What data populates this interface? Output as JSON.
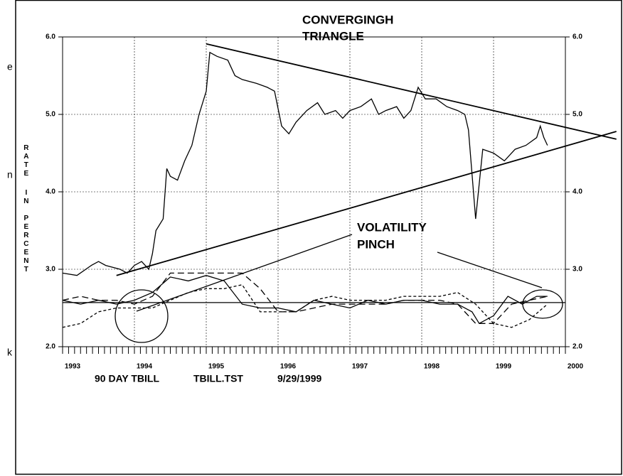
{
  "chart_data": {
    "type": "line",
    "title": [
      "CONVERGINGH",
      "TRIANGLE"
    ],
    "annotation": [
      "VOLATILITY",
      "PINCH"
    ],
    "y_label": [
      "RATE",
      "IN",
      "PERCENT"
    ],
    "footer": [
      "90 DAY TBILL",
      "TBILL.TST",
      "9/29/1999"
    ],
    "fragments": [
      "e",
      "n",
      "k"
    ],
    "xlim": [
      1993,
      2000
    ],
    "xticks": [
      1993,
      1994,
      1995,
      1996,
      1997,
      1998,
      1999,
      2000
    ],
    "ylim": [
      2,
      6
    ],
    "yticks": [
      {
        "value": 2,
        "label": "2.0"
      },
      {
        "value": 3,
        "label": "3.0"
      },
      {
        "value": 4,
        "label": "4.0"
      },
      {
        "value": 5,
        "label": "5.0"
      },
      {
        "value": 6,
        "label": "6.0"
      }
    ],
    "grid": true,
    "hline": 2.57,
    "series": [
      {
        "color": "#000000",
        "dash": "solid",
        "width": 1.3,
        "x": [
          1993.0,
          1993.2,
          1993.4,
          1993.5,
          1993.6,
          1993.8,
          1993.9,
          1994.0,
          1994.1,
          1994.2,
          1994.25,
          1994.3,
          1994.4,
          1994.45,
          1994.5,
          1994.6,
          1994.7,
          1994.8,
          1994.9,
          1995.0,
          1995.05,
          1995.15,
          1995.3,
          1995.4,
          1995.5,
          1995.7,
          1995.85,
          1995.95,
          1996.05,
          1996.15,
          1996.25,
          1996.4,
          1996.55,
          1996.65,
          1996.8,
          1996.9,
          1997.0,
          1997.15,
          1997.3,
          1997.4,
          1997.5,
          1997.65,
          1997.75,
          1997.85,
          1997.95,
          1998.05,
          1998.2,
          1998.35,
          1998.5,
          1998.6,
          1998.65,
          1998.75,
          1998.8,
          1998.85,
          1999.0,
          1999.15,
          1999.3,
          1999.45,
          1999.6,
          1999.65,
          1999.7,
          1999.75
        ],
        "values": [
          2.95,
          2.92,
          3.05,
          3.1,
          3.05,
          3.0,
          2.95,
          3.05,
          3.1,
          3.0,
          3.2,
          3.5,
          3.65,
          4.3,
          4.2,
          4.15,
          4.4,
          4.6,
          5.0,
          5.3,
          5.8,
          5.75,
          5.7,
          5.5,
          5.45,
          5.4,
          5.35,
          5.3,
          4.85,
          4.75,
          4.9,
          5.05,
          5.15,
          5.0,
          5.05,
          4.95,
          5.05,
          5.1,
          5.2,
          5.0,
          5.05,
          5.1,
          4.95,
          5.05,
          5.35,
          5.2,
          5.2,
          5.1,
          5.05,
          5.0,
          4.8,
          3.65,
          4.1,
          4.55,
          4.5,
          4.4,
          4.55,
          4.6,
          4.7,
          4.85,
          4.7,
          4.6
        ]
      },
      {
        "color": "#000000",
        "dash": "solid",
        "width": 1.3,
        "x": [
          1993,
          1993.25,
          1993.5,
          1993.75,
          1994,
          1994.25,
          1994.5,
          1994.75,
          1995,
          1995.25,
          1995.5,
          1995.75,
          1996,
          1996.25,
          1996.5,
          1996.75,
          1997,
          1997.25,
          1997.5,
          1997.75,
          1998,
          1998.25,
          1998.5,
          1998.7,
          1998.8,
          1999,
          1999.2,
          1999.4,
          1999.6,
          1999.75
        ],
        "values": [
          2.6,
          2.55,
          2.6,
          2.55,
          2.6,
          2.7,
          2.9,
          2.85,
          2.92,
          2.85,
          2.55,
          2.5,
          2.5,
          2.45,
          2.6,
          2.55,
          2.5,
          2.6,
          2.55,
          2.6,
          2.6,
          2.55,
          2.55,
          2.45,
          2.3,
          2.4,
          2.65,
          2.55,
          2.65,
          2.65
        ]
      },
      {
        "color": "#000000",
        "dash": "long",
        "width": 1.3,
        "x": [
          1993,
          1993.25,
          1993.5,
          1993.75,
          1994,
          1994.25,
          1994.5,
          1994.75,
          1995,
          1995.25,
          1995.5,
          1995.75,
          1996,
          1996.25,
          1996.5,
          1996.75,
          1997,
          1997.25,
          1997.5,
          1997.75,
          1998,
          1998.25,
          1998.5,
          1998.75,
          1999,
          1999.25,
          1999.5,
          1999.75
        ],
        "values": [
          2.6,
          2.65,
          2.6,
          2.6,
          2.55,
          2.65,
          2.95,
          2.95,
          2.95,
          2.95,
          2.95,
          2.75,
          2.45,
          2.45,
          2.5,
          2.55,
          2.55,
          2.55,
          2.55,
          2.6,
          2.6,
          2.6,
          2.55,
          2.3,
          2.3,
          2.55,
          2.6,
          2.65
        ]
      },
      {
        "color": "#000000",
        "dash": "short",
        "width": 1.3,
        "x": [
          1993,
          1993.25,
          1993.5,
          1993.75,
          1994,
          1994.25,
          1994.5,
          1994.75,
          1995,
          1995.25,
          1995.5,
          1995.75,
          1996,
          1996.25,
          1996.5,
          1996.75,
          1997,
          1997.25,
          1997.5,
          1997.75,
          1998,
          1998.25,
          1998.5,
          1998.75,
          1999,
          1999.25,
          1999.5,
          1999.75
        ],
        "values": [
          2.25,
          2.3,
          2.45,
          2.5,
          2.5,
          2.5,
          2.6,
          2.7,
          2.75,
          2.75,
          2.8,
          2.45,
          2.45,
          2.45,
          2.6,
          2.65,
          2.6,
          2.6,
          2.6,
          2.65,
          2.65,
          2.65,
          2.7,
          2.55,
          2.3,
          2.25,
          2.35,
          2.55
        ]
      }
    ],
    "trendlines": [
      {
        "x": [
          1995.0,
          2000.71
        ],
        "values": [
          5.91,
          4.68
        ]
      },
      {
        "x": [
          1993.75,
          2000.71
        ],
        "values": [
          2.92,
          4.78
        ]
      }
    ]
  }
}
